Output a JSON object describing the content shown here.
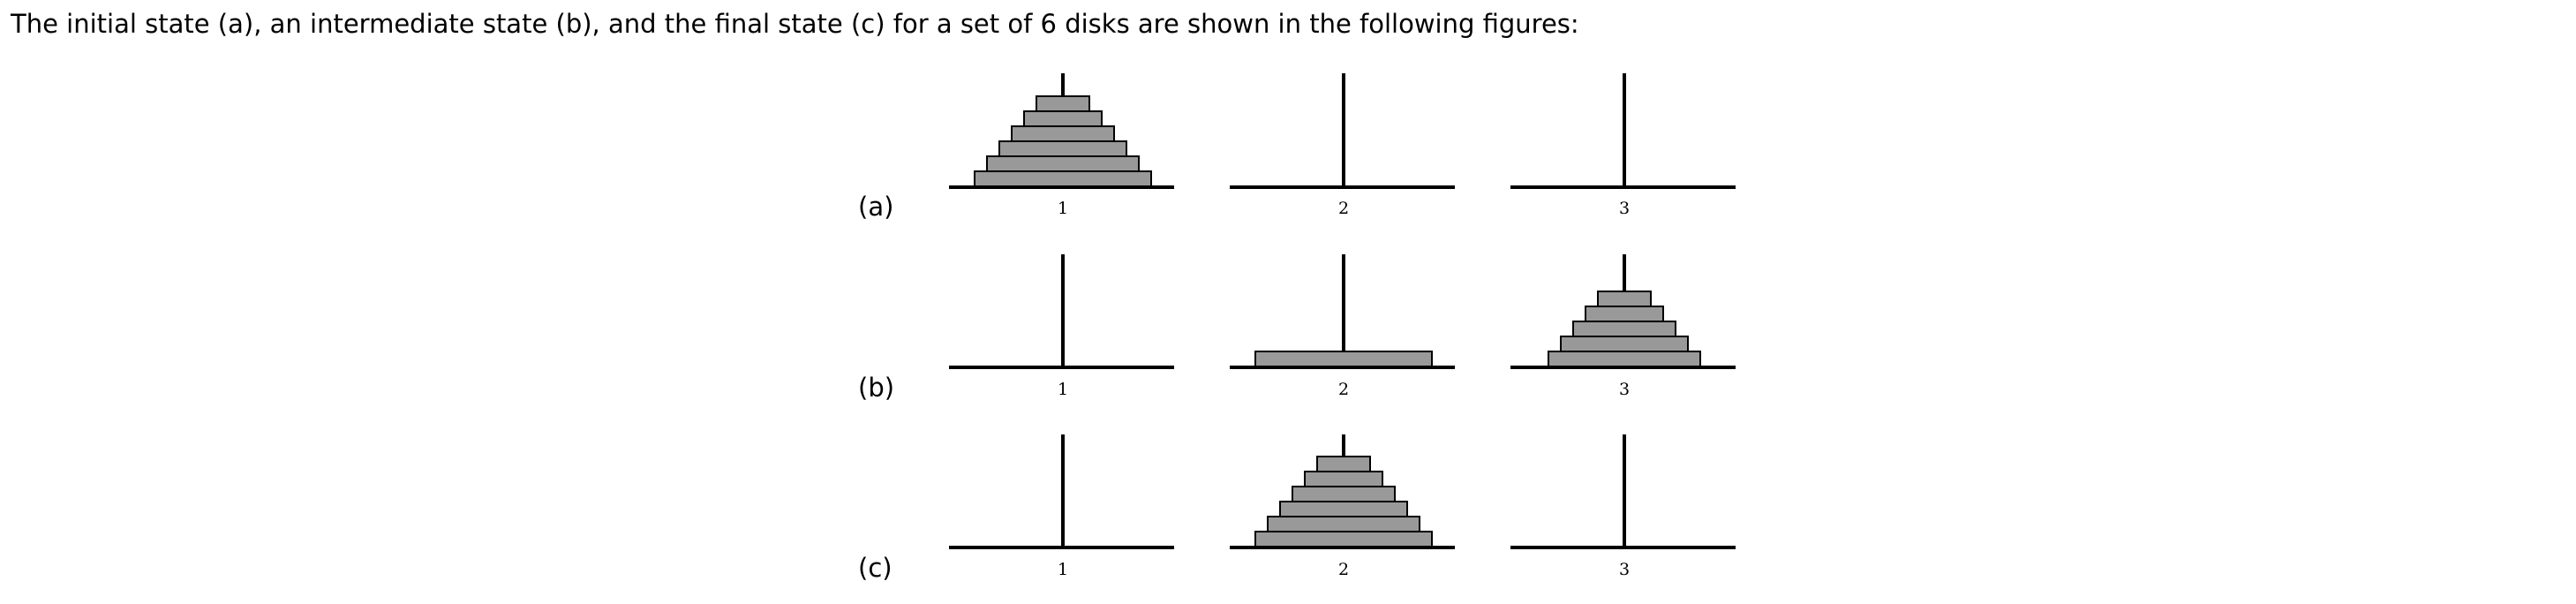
{
  "intro_text": "The initial state (a), an intermediate state (b), and the final state (c) for a set of 6 disks are shown in the following figures:",
  "disk_color": "#999999",
  "outline_color": "#000000",
  "peg_labels": [
    "1",
    "2",
    "3"
  ],
  "states": [
    {
      "label": "(a)",
      "pegs": [
        {
          "peg": "1",
          "disks": [
            6,
            5,
            4,
            3,
            2,
            1
          ]
        },
        {
          "peg": "2",
          "disks": []
        },
        {
          "peg": "3",
          "disks": []
        }
      ]
    },
    {
      "label": "(b)",
      "pegs": [
        {
          "peg": "1",
          "disks": []
        },
        {
          "peg": "2",
          "disks": [
            6
          ]
        },
        {
          "peg": "3",
          "disks": [
            5,
            4,
            3,
            2,
            1
          ]
        }
      ]
    },
    {
      "label": "(c)",
      "pegs": [
        {
          "peg": "1",
          "disks": []
        },
        {
          "peg": "2",
          "disks": [
            6,
            5,
            4,
            3,
            2,
            1
          ]
        },
        {
          "peg": "3",
          "disks": []
        }
      ]
    }
  ]
}
